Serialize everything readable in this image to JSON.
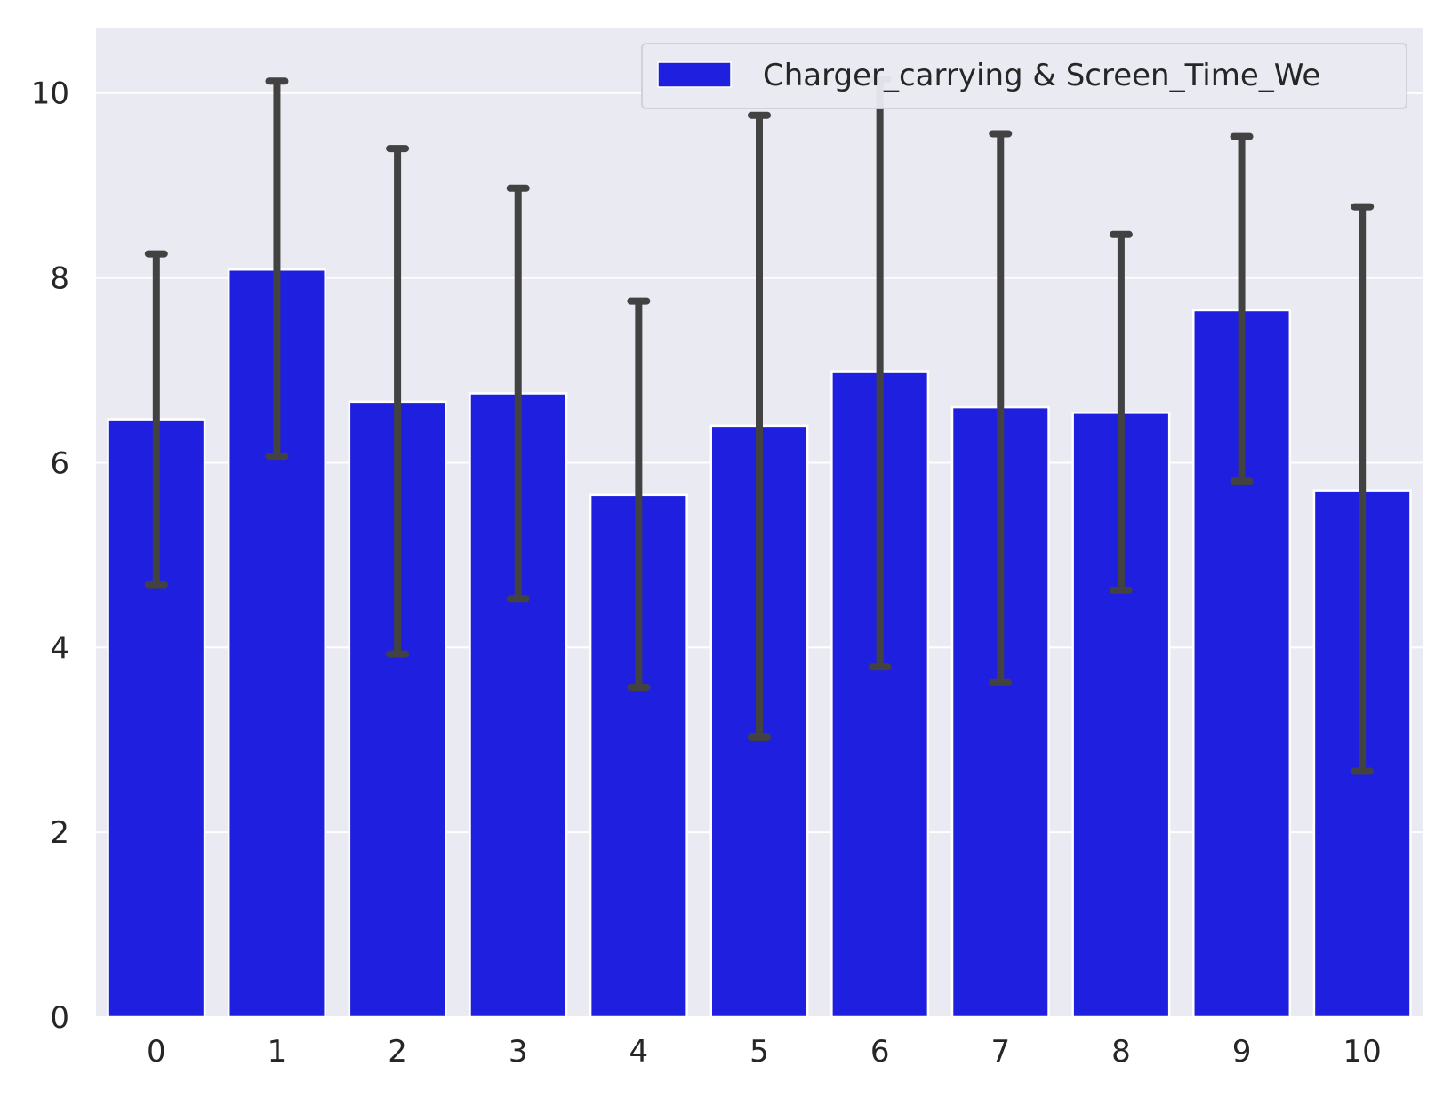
{
  "chart_data": {
    "type": "bar",
    "categories": [
      "0",
      "1",
      "2",
      "3",
      "4",
      "5",
      "6",
      "7",
      "8",
      "9",
      "10"
    ],
    "series": [
      {
        "name": "Charger_carrying & Screen_Time_We",
        "values": [
          6.47,
          8.09,
          6.66,
          6.75,
          5.65,
          6.4,
          6.99,
          6.6,
          6.54,
          7.65,
          5.7
        ],
        "error_low": [
          4.68,
          6.07,
          3.93,
          4.53,
          3.57,
          3.03,
          3.79,
          3.62,
          4.62,
          5.8,
          2.66
        ],
        "error_high": [
          8.26,
          10.13,
          9.4,
          8.97,
          7.75,
          9.76,
          10.15,
          9.56,
          8.47,
          9.53,
          8.77
        ]
      }
    ],
    "xlabel": "",
    "ylabel": "",
    "ylim": [
      0,
      10.7
    ],
    "yticks": [
      0,
      2,
      4,
      6,
      8,
      10
    ],
    "grid": true,
    "legend_position": "top-right",
    "colors": {
      "bar": "#1f1fe0",
      "error_bar": "#424242",
      "background": "#eaeaf2",
      "grid": "#ffffff"
    }
  }
}
